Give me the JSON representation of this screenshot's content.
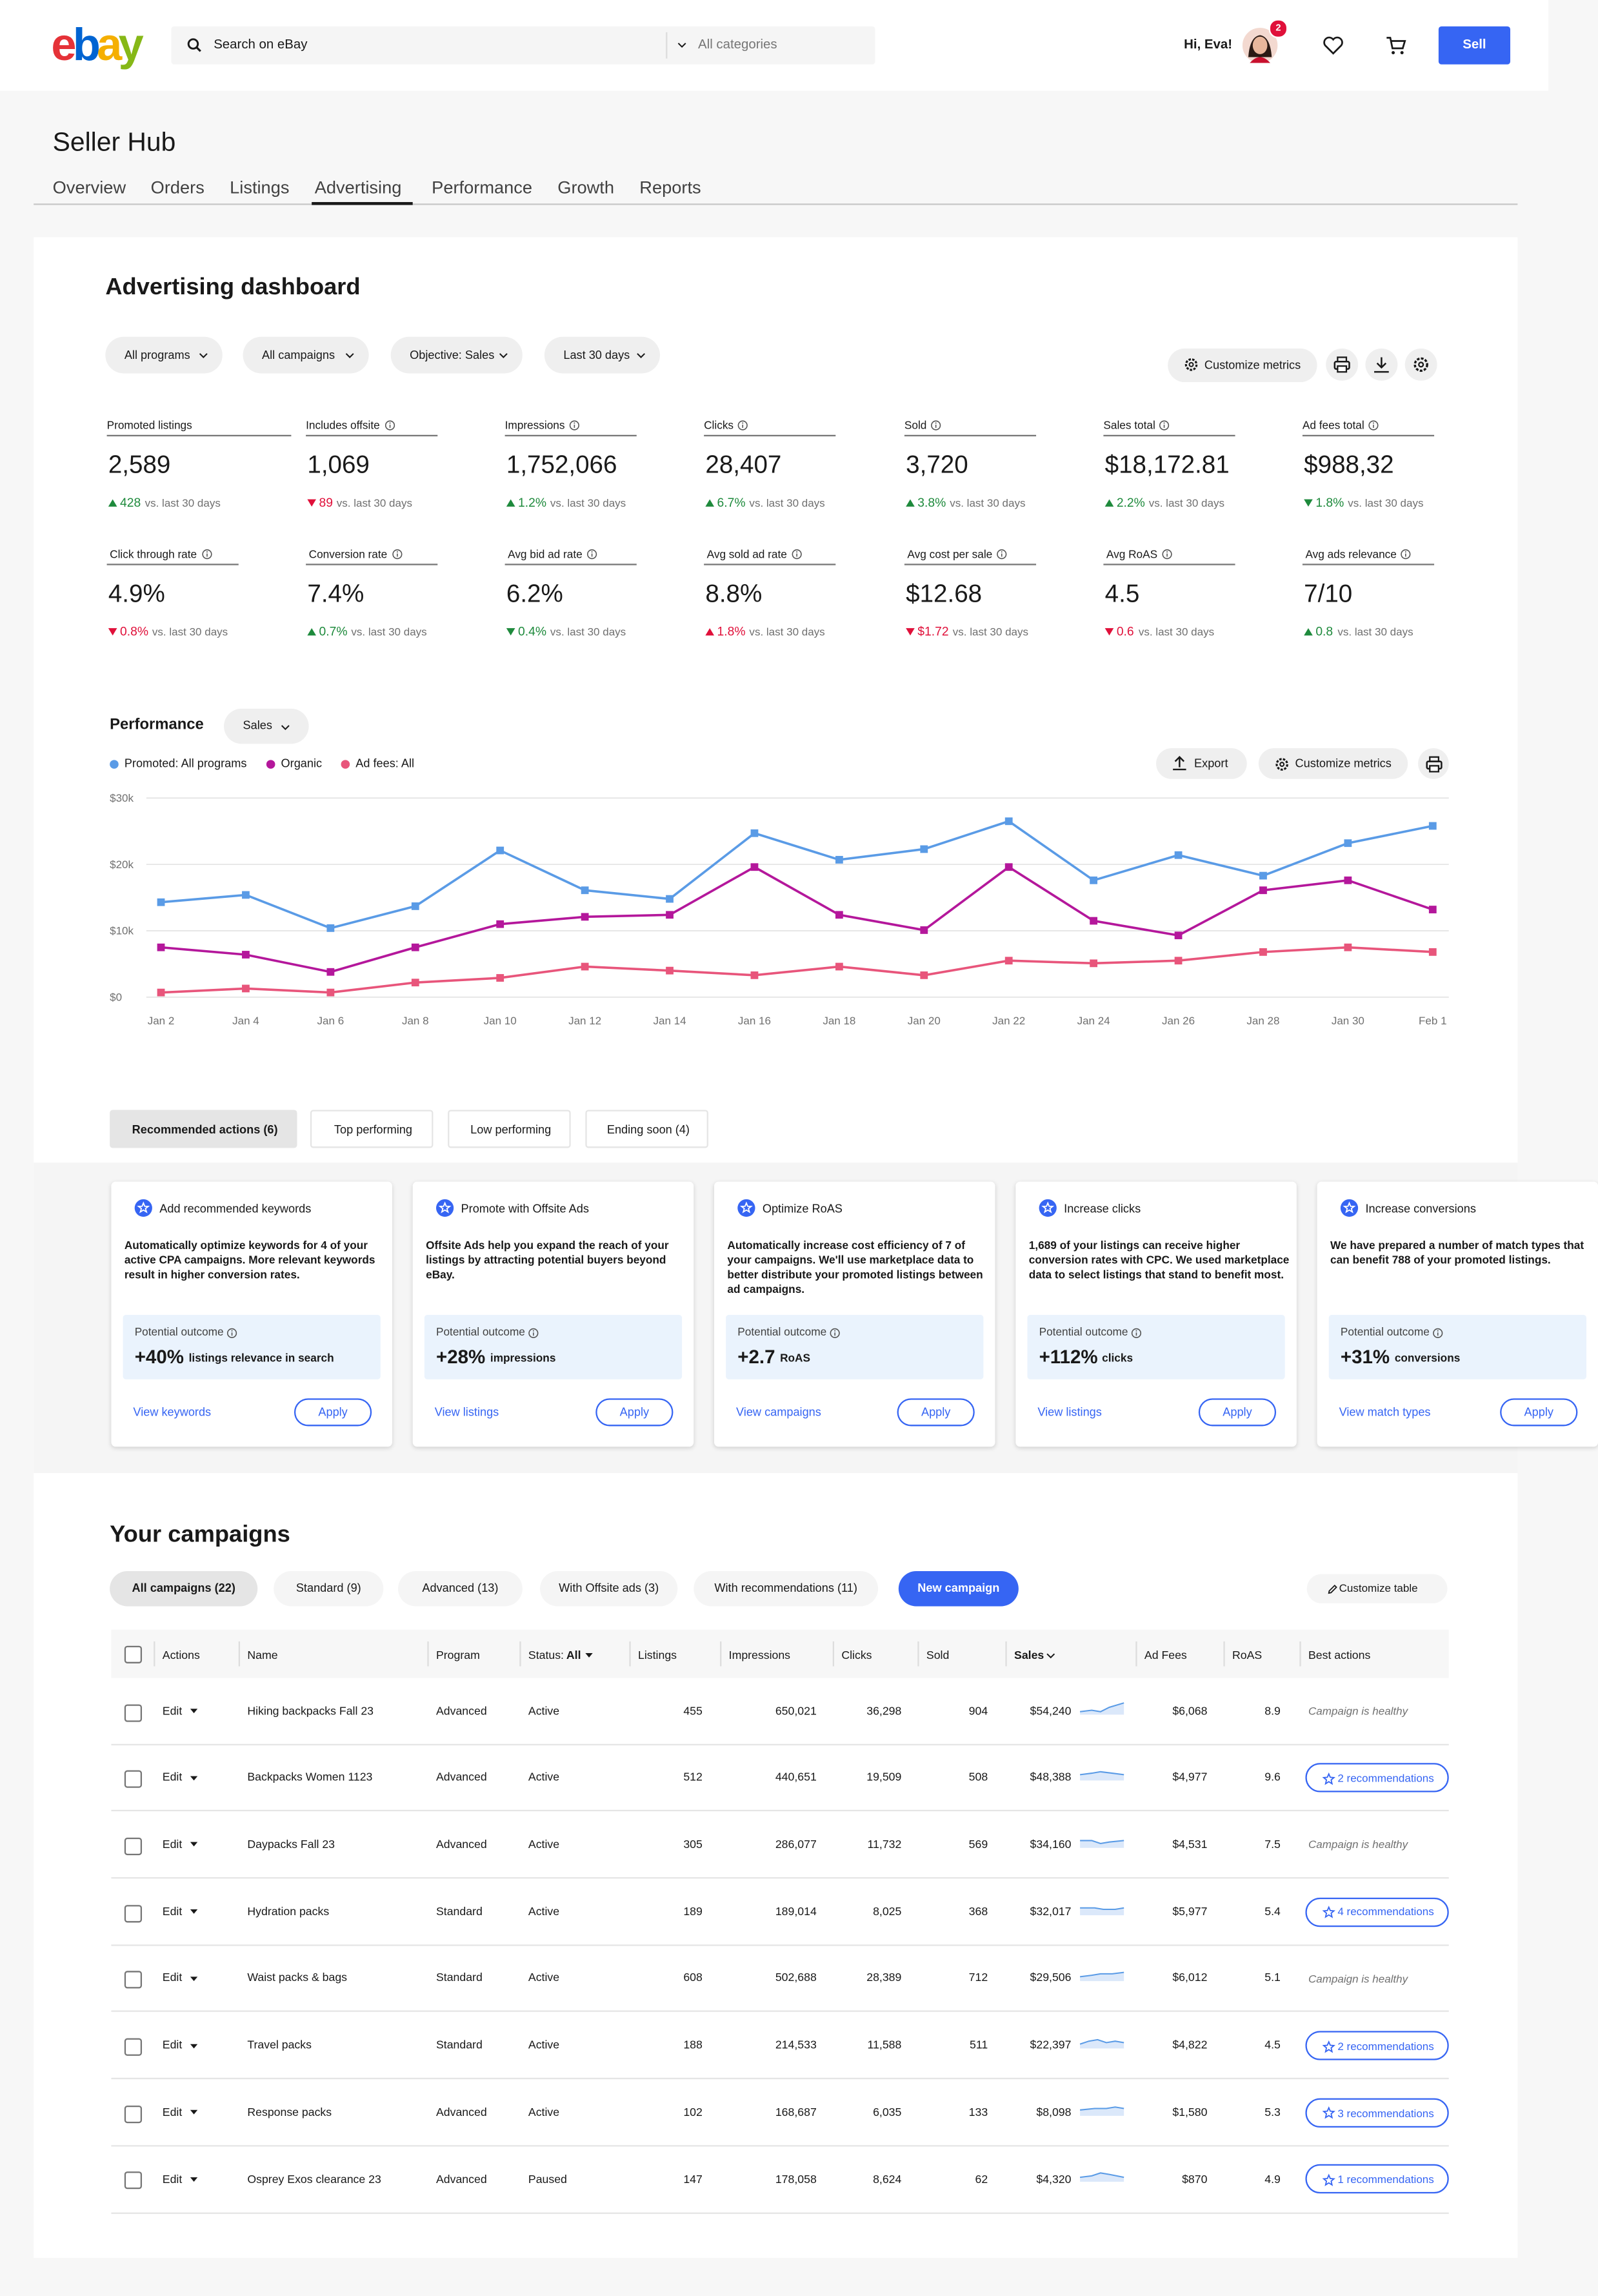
{
  "header": {
    "logo": "ebay",
    "search_placeholder": "Search on eBay",
    "category": "All categories",
    "greeting": "Hi, Eva!",
    "badge": "2",
    "sell": "Sell"
  },
  "hub": {
    "title": "Seller Hub",
    "tabs": [
      "Overview",
      "Orders",
      "Listings",
      "Advertising",
      "Performance",
      "Growth",
      "Reports"
    ],
    "active_tab": 3
  },
  "dashboard": {
    "title": "Advertising dashboard",
    "filters": [
      "All programs",
      "All campaigns",
      "Objective: Sales",
      "Last 30 days"
    ],
    "customize": "Customize metrics",
    "comparison": "vs. last 30 days",
    "metrics": [
      {
        "label": "Promoted listings",
        "value": "2,589",
        "delta": "428",
        "direction": "up",
        "trend": "good"
      },
      {
        "label": "Includes offsite",
        "value": "1,069",
        "delta": "89",
        "direction": "down",
        "trend": "bad"
      },
      {
        "label": "Impressions",
        "value": "1,752,066",
        "delta": "1.2%",
        "direction": "up",
        "trend": "good"
      },
      {
        "label": "Clicks",
        "value": "28,407",
        "delta": "6.7%",
        "direction": "up",
        "trend": "good"
      },
      {
        "label": "Sold",
        "value": "3,720",
        "delta": "3.8%",
        "direction": "up",
        "trend": "good"
      },
      {
        "label": "Sales total",
        "value": "$18,172.81",
        "delta": "2.2%",
        "direction": "up",
        "trend": "good"
      },
      {
        "label": "Ad fees total",
        "value": "$988,32",
        "delta": "1.8%",
        "direction": "down",
        "trend": "good"
      },
      {
        "label": "Click through rate",
        "value": "4.9%",
        "delta": "0.8%",
        "direction": "down",
        "trend": "bad"
      },
      {
        "label": "Conversion rate",
        "value": "7.4%",
        "delta": "0.7%",
        "direction": "up",
        "trend": "good"
      },
      {
        "label": "Avg bid ad rate",
        "value": "6.2%",
        "delta": "0.4%",
        "direction": "down",
        "trend": "good"
      },
      {
        "label": "Avg sold ad rate",
        "value": "8.8%",
        "delta": "1.8%",
        "direction": "up",
        "trend": "bad"
      },
      {
        "label": "Avg cost per sale",
        "value": "$12.68",
        "delta": "$1.72",
        "direction": "down",
        "trend": "bad"
      },
      {
        "label": "Avg RoAS",
        "value": "4.5",
        "delta": "0.6",
        "direction": "down",
        "trend": "bad"
      },
      {
        "label": "Avg ads relevance",
        "value": "7/10",
        "delta": "0.8",
        "direction": "up",
        "trend": "good"
      }
    ]
  },
  "performance": {
    "title": "Performance",
    "dropdown": "Sales",
    "export": "Export",
    "customize": "Customize metrics"
  },
  "chart_data": {
    "type": "line",
    "categories": [
      "Jan 2",
      "Jan 4",
      "Jan 6",
      "Jan 8",
      "Jan 10",
      "Jan 12",
      "Jan 14",
      "Jan 16",
      "Jan 18",
      "Jan 20",
      "Jan 22",
      "Jan 24",
      "Jan 26",
      "Jan 28",
      "Jan 30",
      "Feb 1"
    ],
    "series": [
      {
        "name": "Promoted: All programs",
        "color": "#5a9be6",
        "values": [
          14300,
          15400,
          10400,
          13700,
          22100,
          16100,
          14800,
          24700,
          20700,
          22300,
          26500,
          17600,
          21400,
          18300,
          23200,
          25800
        ]
      },
      {
        "name": "Organic",
        "color": "#b4179b",
        "values": [
          7500,
          6400,
          3800,
          7500,
          11000,
          12100,
          12400,
          19600,
          12400,
          10100,
          19600,
          11500,
          9300,
          16100,
          17600,
          13200
        ]
      },
      {
        "name": "Ad fees: All",
        "color": "#e8557b",
        "values": [
          700,
          1300,
          700,
          2200,
          2900,
          4600,
          4000,
          3300,
          4600,
          3300,
          5500,
          5100,
          5500,
          6800,
          7500,
          6800
        ]
      }
    ],
    "ylim": [
      0,
      30000
    ],
    "yticks": [
      {
        "value": 0,
        "label": "$0"
      },
      {
        "value": 10000,
        "label": "$10k"
      },
      {
        "value": 20000,
        "label": "$20k"
      },
      {
        "value": 30000,
        "label": "$30k"
      }
    ],
    "grid": true,
    "legend": "top-left"
  },
  "recommendations": {
    "tabs": [
      "Recommended actions (6)",
      "Top performing",
      "Low performing",
      "Ending soon (4)"
    ],
    "active_tab": 0,
    "outcome_label": "Potential outcome",
    "apply": "Apply",
    "cards": [
      {
        "title": "Add recommended keywords",
        "body": "Automatically optimize keywords for 4 of your active CPA campaigns. More relevant keywords result in higher conversion rates.",
        "outcome": "+40%",
        "outcome_unit": "listings relevance in search",
        "link": "View keywords"
      },
      {
        "title": "Promote with Offsite Ads",
        "body": "Offsite Ads help you expand the reach of your listings by attracting potential buyers beyond eBay.",
        "outcome": "+28%",
        "outcome_unit": "impressions",
        "link": "View listings"
      },
      {
        "title": "Optimize RoAS",
        "body": "Automatically increase cost efficiency of 7 of your campaigns. We'll use marketplace data to better distribute your promoted listings between ad campaigns.",
        "outcome": "+2.7",
        "outcome_unit": "RoAS",
        "link": "View campaigns"
      },
      {
        "title": "Increase clicks",
        "body": "1,689 of your listings can receive higher conversion rates with CPC. We used marketplace data to select listings that stand to benefit most.",
        "outcome": "+112%",
        "outcome_unit": "clicks",
        "link": "View listings"
      },
      {
        "title": "Increase conversions",
        "body": "We have prepared a number of match types that can benefit 788 of your promoted listings.",
        "outcome": "+31%",
        "outcome_unit": "conversions",
        "link": "View match types"
      }
    ]
  },
  "campaigns": {
    "title": "Your campaigns",
    "chips": [
      "All campaigns (22)",
      "Standard (9)",
      "Advanced (13)",
      "With Offsite ads (3)",
      "With recommendations (11)"
    ],
    "active_chip": 0,
    "new_campaign": "New campaign",
    "customize": "Customize table",
    "edit": "Edit",
    "headers": {
      "actions": "Actions",
      "name": "Name",
      "program": "Program",
      "status": "Status:",
      "status_filter": "All",
      "listings": "Listings",
      "impressions": "Impressions",
      "clicks": "Clicks",
      "sold": "Sold",
      "sales": "Sales",
      "ad_fees": "Ad Fees",
      "roas": "RoAS",
      "best": "Best actions"
    },
    "rows": [
      {
        "name": "Hiking backpacks Fall 23",
        "program": "Advanced",
        "status": "Active",
        "listings": "455",
        "impressions": "650,021",
        "clicks": "36,298",
        "sold": "904",
        "sales": "$54,240",
        "ad_fees": "$6,068",
        "roas": "8.9",
        "best": "Campaign is healthy",
        "best_type": "text"
      },
      {
        "name": "Backpacks Women 1123",
        "program": "Advanced",
        "status": "Active",
        "listings": "512",
        "impressions": "440,651",
        "clicks": "19,509",
        "sold": "508",
        "sales": "$48,388",
        "ad_fees": "$4,977",
        "roas": "9.6",
        "best": "2 recommendations",
        "best_type": "button"
      },
      {
        "name": "Daypacks Fall 23",
        "program": "Advanced",
        "status": "Active",
        "listings": "305",
        "impressions": "286,077",
        "clicks": "11,732",
        "sold": "569",
        "sales": "$34,160",
        "ad_fees": "$4,531",
        "roas": "7.5",
        "best": "Campaign is healthy",
        "best_type": "text"
      },
      {
        "name": "Hydration packs",
        "program": "Standard",
        "status": "Active",
        "listings": "189",
        "impressions": "189,014",
        "clicks": "8,025",
        "sold": "368",
        "sales": "$32,017",
        "ad_fees": "$5,977",
        "roas": "5.4",
        "best": "4 recommendations",
        "best_type": "button"
      },
      {
        "name": "Waist packs & bags",
        "program": "Standard",
        "status": "Active",
        "listings": "608",
        "impressions": "502,688",
        "clicks": "28,389",
        "sold": "712",
        "sales": "$29,506",
        "ad_fees": "$6,012",
        "roas": "5.1",
        "best": "Campaign is healthy",
        "best_type": "text"
      },
      {
        "name": "Travel packs",
        "program": "Standard",
        "status": "Active",
        "listings": "188",
        "impressions": "214,533",
        "clicks": "11,588",
        "sold": "511",
        "sales": "$22,397",
        "ad_fees": "$4,822",
        "roas": "4.5",
        "best": "2 recommendations",
        "best_type": "button"
      },
      {
        "name": "Response packs",
        "program": "Advanced",
        "status": "Active",
        "listings": "102",
        "impressions": "168,687",
        "clicks": "6,035",
        "sold": "133",
        "sales": "$8,098",
        "ad_fees": "$1,580",
        "roas": "5.3",
        "best": "3 recommendations",
        "best_type": "button"
      },
      {
        "name": "Osprey Exos clearance 23",
        "program": "Advanced",
        "status": "Paused",
        "listings": "147",
        "impressions": "178,058",
        "clicks": "8,624",
        "sold": "62",
        "sales": "$4,320",
        "ad_fees": "$870",
        "roas": "4.9",
        "best": "1 recommendations",
        "best_type": "button"
      }
    ]
  }
}
